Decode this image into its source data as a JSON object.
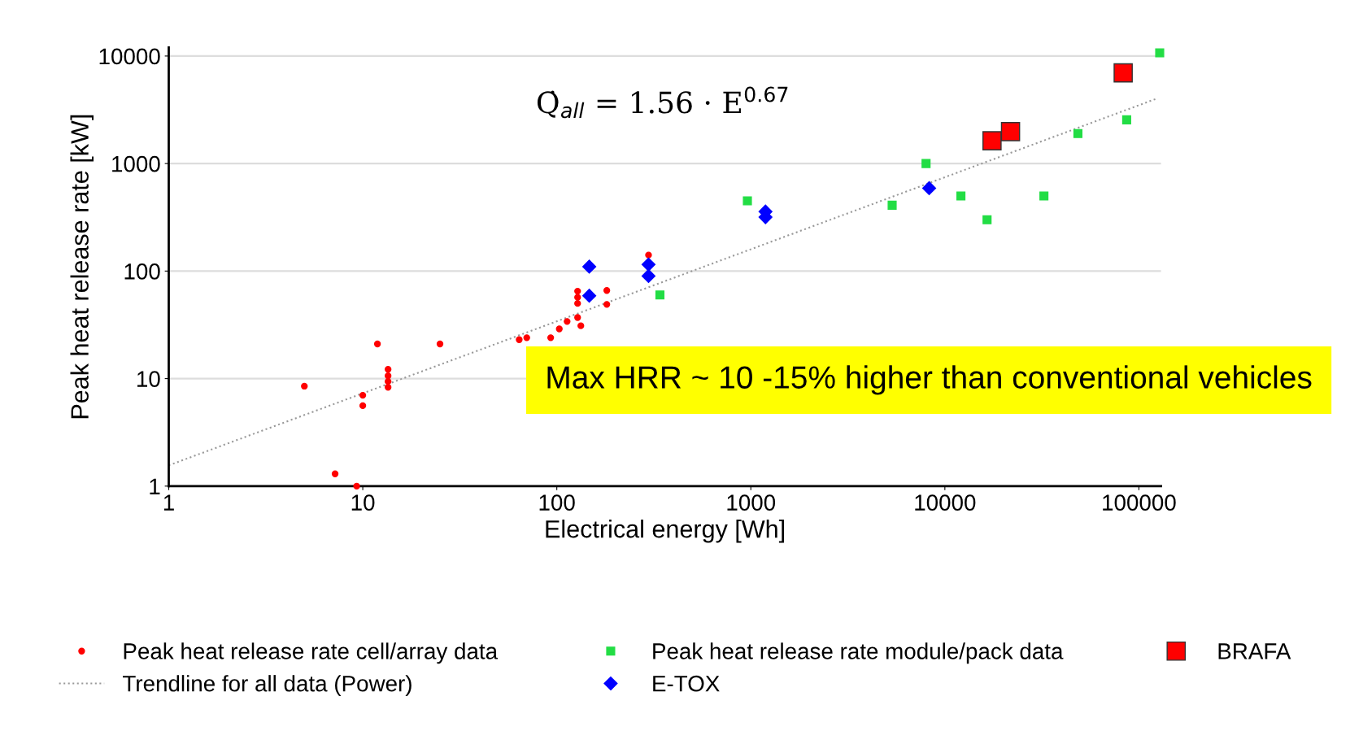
{
  "chart_data": {
    "type": "scatter",
    "xlabel": "Electrical energy [Wh]",
    "ylabel": "Peak heat release rate [kW]",
    "log": "xy",
    "grid": "y",
    "legend": "bottom",
    "xlim": [
      1,
      130000
    ],
    "xticks": [
      1,
      10,
      100,
      1000,
      10000,
      100000
    ],
    "ylim": [
      1,
      12000
    ],
    "yticks": [
      1,
      10,
      100,
      1000,
      10000
    ],
    "annotations": [
      "Q̇$_{all}$ = 1.56 · E$^{0.67}$",
      "Max HRR ~ 10 -15% higher than conventional vehicles"
    ],
    "series": [
      {
        "name": "Peak heat release rate cell/array data",
        "color": "#ff0000",
        "marker": "circle",
        "x": [
          5.0,
          7.2,
          9.3,
          10,
          10,
          11.9,
          13.5,
          13.5,
          13.5,
          13.5,
          25,
          64,
          70,
          93,
          103,
          113,
          128,
          128,
          128,
          128,
          133,
          181,
          181,
          297
        ],
        "values": [
          8.5,
          1.3,
          1.0,
          7.0,
          5.6,
          21,
          12.2,
          10.6,
          9.4,
          8.3,
          21,
          23,
          24,
          24,
          29,
          34,
          37,
          65,
          57,
          50,
          31,
          66,
          49,
          141
        ]
      },
      {
        "name": "Trendline for all data (Power)",
        "type": "line",
        "color": "#999999",
        "line_style": "dotted",
        "marker": "none",
        "x": [
          1,
          125000
        ],
        "values": [
          1.56,
          4050
        ]
      },
      {
        "name": "Peak heat release rate module/pack data",
        "color": "#22dd44",
        "marker": "square",
        "x": [
          340,
          960,
          5350,
          8000,
          12100,
          16500,
          32400,
          48500,
          86500,
          128000
        ],
        "values": [
          60,
          450,
          410,
          1000,
          500,
          300,
          500,
          1900,
          2550,
          10700
        ]
      },
      {
        "name": "E-TOX",
        "color": "#0000ff",
        "marker": "diamond",
        "x": [
          147,
          147,
          297,
          297,
          1190,
          1190,
          8300
        ],
        "values": [
          110,
          59,
          115,
          90,
          358,
          317,
          590
        ]
      },
      {
        "name": "BRAFA",
        "color": "#ff0000",
        "marker": "square",
        "x": [
          17500,
          21800,
          83000
        ],
        "values": [
          1630,
          1980,
          6970
        ]
      }
    ]
  }
}
